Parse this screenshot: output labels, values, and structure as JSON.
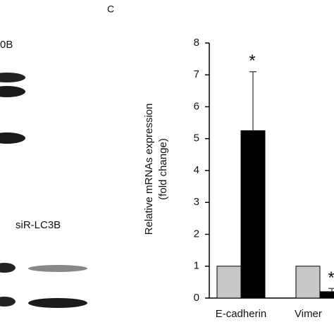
{
  "panel_left": {
    "label": "0B",
    "sublabel": "siR-LC3B"
  },
  "chart_data": {
    "type": "bar",
    "panel": "C",
    "ylabel": [
      "Relative  mRNAs expression",
      "(fold change)"
    ],
    "categories": [
      "E-cadherin",
      "Vimer"
    ],
    "series": [
      {
        "color": "#c8c8c8",
        "values": [
          1,
          1
        ]
      },
      {
        "color": "#000000",
        "values": [
          5.25,
          0.2
        ],
        "errors": [
          1.85,
          0.1
        ]
      }
    ],
    "annotations": [
      "*",
      "*"
    ],
    "ylim": [
      0,
      8
    ],
    "yticks": [
      0,
      1,
      2,
      3,
      4,
      5,
      6,
      7,
      8
    ],
    "grid": false
  }
}
